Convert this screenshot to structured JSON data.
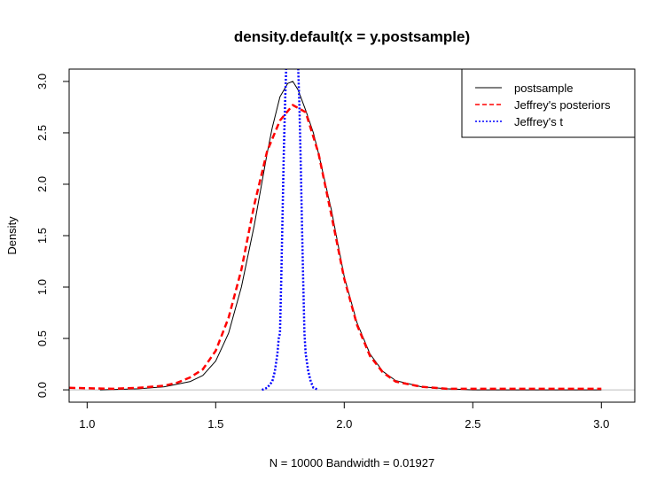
{
  "chart_data": {
    "type": "line",
    "title": "density.default(x = y.postsample)",
    "xlabel": "N = 10000   Bandwidth = 0.01927",
    "ylabel": "Density",
    "xlim": [
      0.93,
      3.13
    ],
    "ylim": [
      -0.12,
      3.12
    ],
    "x_ticks": [
      1.0,
      1.5,
      2.0,
      2.5,
      3.0
    ],
    "x_tick_labels": [
      "1.0",
      "1.5",
      "2.0",
      "2.5",
      "3.0"
    ],
    "y_ticks": [
      0.0,
      0.5,
      1.0,
      1.5,
      2.0,
      2.5,
      3.0
    ],
    "y_tick_labels": [
      "0.0",
      "0.5",
      "1.0",
      "1.5",
      "2.0",
      "2.5",
      "3.0"
    ],
    "baseline_color": "#bebebe",
    "legend": {
      "position": "top-right",
      "entries": [
        {
          "label": "postsample",
          "color": "#000000",
          "style": "solid"
        },
        {
          "label": "Jeffrey's posteriors",
          "color": "#ff0000",
          "style": "dashed"
        },
        {
          "label": "Jeffrey's t",
          "color": "#0000ff",
          "style": "dotted"
        }
      ]
    },
    "series": [
      {
        "name": "postsample",
        "color": "#000000",
        "style": "solid",
        "x": [
          1.05,
          1.2,
          1.3,
          1.4,
          1.45,
          1.5,
          1.55,
          1.6,
          1.65,
          1.7,
          1.72,
          1.75,
          1.78,
          1.8,
          1.82,
          1.85,
          1.88,
          1.9,
          1.95,
          2.0,
          2.05,
          2.1,
          2.15,
          2.2,
          2.3,
          2.4,
          2.5,
          2.7,
          3.0
        ],
        "y": [
          0.0,
          0.01,
          0.03,
          0.08,
          0.14,
          0.28,
          0.55,
          1.0,
          1.6,
          2.3,
          2.55,
          2.85,
          2.98,
          3.0,
          2.92,
          2.72,
          2.5,
          2.3,
          1.75,
          1.1,
          0.65,
          0.35,
          0.18,
          0.09,
          0.03,
          0.01,
          0.0,
          0.0,
          0.0
        ]
      },
      {
        "name": "Jeffrey's posteriors",
        "color": "#ff0000",
        "style": "dashed",
        "x": [
          0.93,
          1.1,
          1.2,
          1.3,
          1.35,
          1.4,
          1.45,
          1.5,
          1.55,
          1.6,
          1.65,
          1.7,
          1.75,
          1.8,
          1.85,
          1.9,
          1.95,
          2.0,
          2.05,
          2.1,
          2.15,
          2.2,
          2.3,
          2.4,
          2.5,
          2.6,
          2.8,
          3.0
        ],
        "y": [
          0.02,
          0.01,
          0.02,
          0.04,
          0.07,
          0.12,
          0.2,
          0.38,
          0.7,
          1.17,
          1.8,
          2.32,
          2.62,
          2.77,
          2.7,
          2.3,
          1.7,
          1.08,
          0.63,
          0.33,
          0.17,
          0.08,
          0.03,
          0.01,
          0.01,
          0.01,
          0.01,
          0.01
        ]
      },
      {
        "name": "Jeffrey's t",
        "color": "#0000ff",
        "style": "dotted",
        "x": [
          1.68,
          1.7,
          1.72,
          1.73,
          1.74,
          1.745,
          1.75,
          1.755,
          1.76,
          1.765,
          1.77,
          1.775,
          1.82,
          1.825,
          1.83,
          1.835,
          1.84,
          1.845,
          1.85,
          1.86,
          1.87,
          1.88,
          1.9
        ],
        "y": [
          0.0,
          0.02,
          0.08,
          0.18,
          0.35,
          0.5,
          0.55,
          1.1,
          1.7,
          2.3,
          2.8,
          3.2,
          3.2,
          2.8,
          2.3,
          1.7,
          1.1,
          0.55,
          0.35,
          0.18,
          0.08,
          0.02,
          0.0
        ]
      }
    ]
  }
}
